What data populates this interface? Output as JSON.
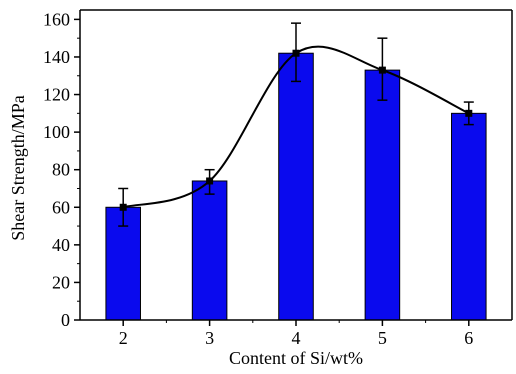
{
  "chart_data": {
    "type": "bar",
    "title": "",
    "xlabel": "Content of Si/wt%",
    "ylabel": "Shear Strength/MPa",
    "categories": [
      "2",
      "3",
      "4",
      "5",
      "6"
    ],
    "x": [
      2,
      3,
      4,
      5,
      6
    ],
    "values": [
      60,
      74,
      142,
      133,
      110
    ],
    "error_low": [
      50,
      67,
      127,
      117,
      104
    ],
    "error_high": [
      70,
      80,
      158,
      150,
      116
    ],
    "xlim": [
      1.5,
      6.5
    ],
    "ylim": [
      0,
      165
    ],
    "yticks": [
      0,
      20,
      40,
      60,
      80,
      100,
      120,
      140,
      160
    ],
    "xticks": [
      "2",
      "3",
      "4",
      "5",
      "6"
    ],
    "trend_line": true,
    "grid": false,
    "legend": "none",
    "colors": {
      "bar_fill": "#0a0aee",
      "bar_edge": "#000000",
      "line": "#000000",
      "marker": "#000000"
    }
  }
}
